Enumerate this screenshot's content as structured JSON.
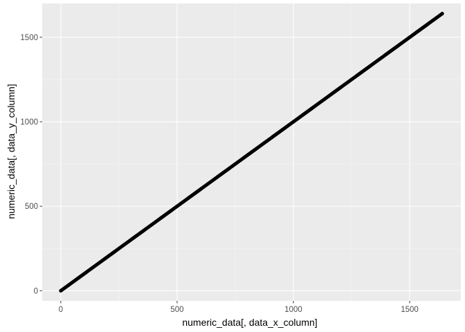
{
  "chart_data": {
    "type": "scatter",
    "title": "",
    "xlabel": "numeric_data[, data_x_column]",
    "ylabel": "numeric_data[, data_y_column]",
    "xlim": [
      -80,
      1720
    ],
    "ylim": [
      -60,
      1700
    ],
    "x_ticks": [
      0,
      500,
      1000,
      1500
    ],
    "x_tick_labels": [
      "0",
      "500",
      "1000",
      "1500"
    ],
    "y_ticks": [
      0,
      500,
      1000,
      1500
    ],
    "y_tick_labels": [
      "0",
      "500",
      "1000",
      "1500"
    ],
    "grid": true,
    "series": [
      {
        "points_description_note": "",
        "x_start": 0,
        "x_end": 1640,
        "relation": "y = x",
        "point_count": 400
      }
    ],
    "colors": {
      "panel_background": "#ebebeb",
      "grid_major": "#ffffff",
      "grid_minor": "#f5f5f5",
      "points": "#000000",
      "tick_text": "#4d4d4d"
    }
  }
}
